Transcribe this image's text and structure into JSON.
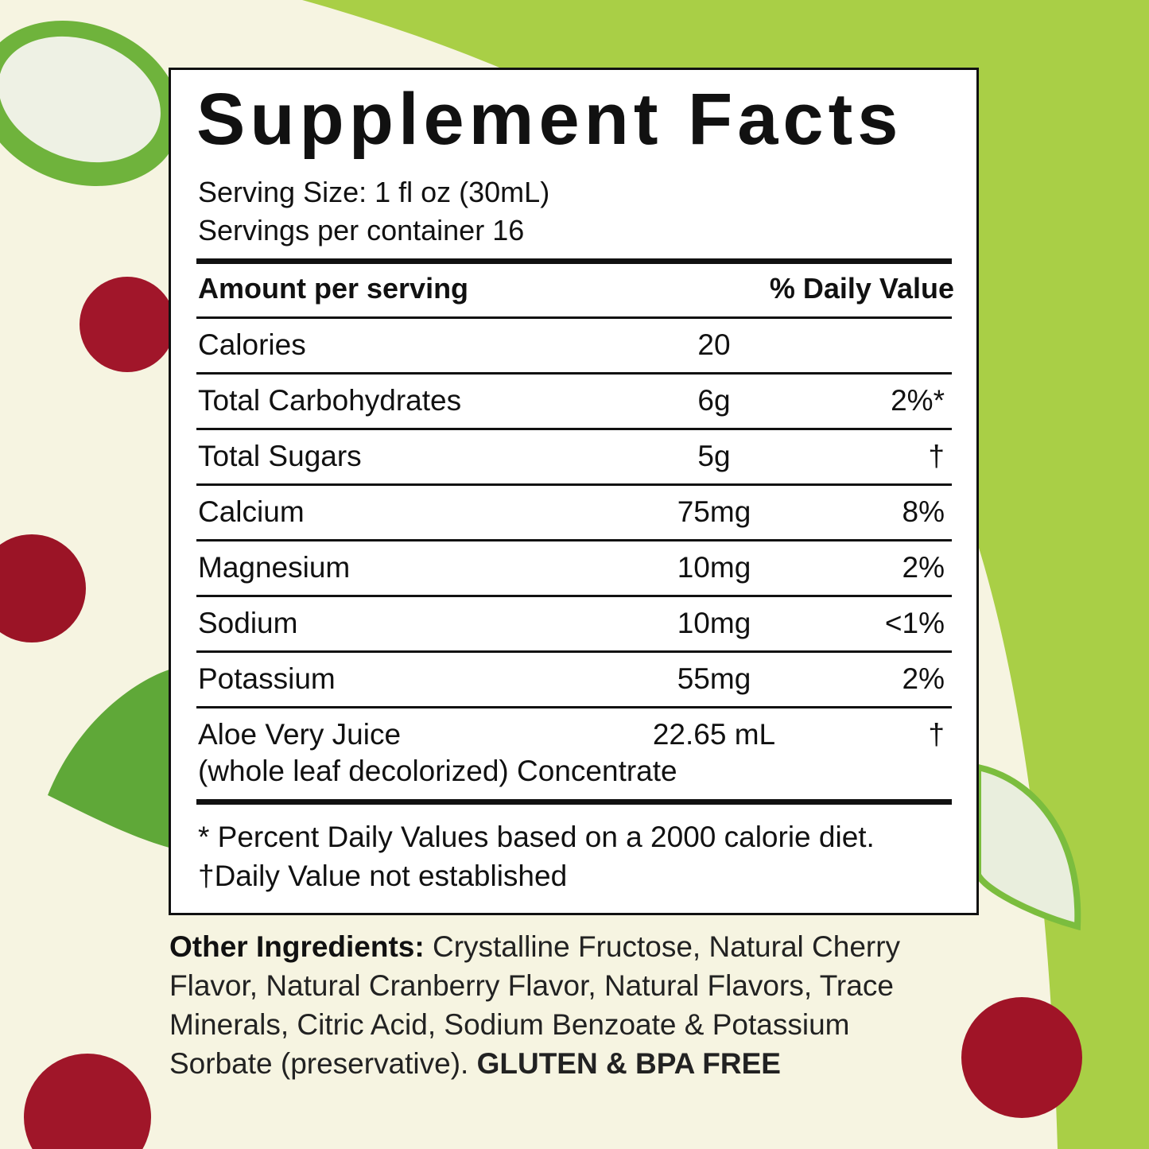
{
  "panel": {
    "title": "Supplement Facts",
    "serving_size": "Serving Size: 1 fl oz (30mL)",
    "servings": "Servings per container 16",
    "header": {
      "amount": "Amount per serving",
      "dv": "% Daily Value"
    },
    "rows": [
      {
        "name": "Calories",
        "amount": "20"
      },
      {
        "name": "Total Carbohydrates",
        "amount": "6g",
        "dv": "2%*"
      },
      {
        "name": "Total Sugars",
        "amount": "5g",
        "dv": "†"
      },
      {
        "name": "Calcium",
        "amount": "75mg",
        "dv": "8%"
      },
      {
        "name": "Magnesium",
        "amount": "10mg",
        "dv": "2%"
      },
      {
        "name": "Sodium",
        "amount": "10mg",
        "dv": "<1%"
      },
      {
        "name": "Potassium",
        "amount": "55mg",
        "dv": "2%"
      },
      {
        "name": "Aloe Very Juice",
        "note": "(whole leaf decolorized) Concentrate",
        "amount": "22.65 mL",
        "dv": "†"
      }
    ],
    "footnotes": [
      "* Percent Daily Values based on a 2000 calorie diet.",
      "†Daily Value not established"
    ]
  },
  "ingredients": {
    "label": "Other Ingredients:",
    "text": "Crystalline Fructose, Natural Cherry Flavor, Natural Cranberry Flavor, Natural Flavors, Trace Minerals, Citric Acid, Sodium Benzoate & Potassium Sorbate (preservative).",
    "claim": "GLUTEN & BPA FREE"
  }
}
